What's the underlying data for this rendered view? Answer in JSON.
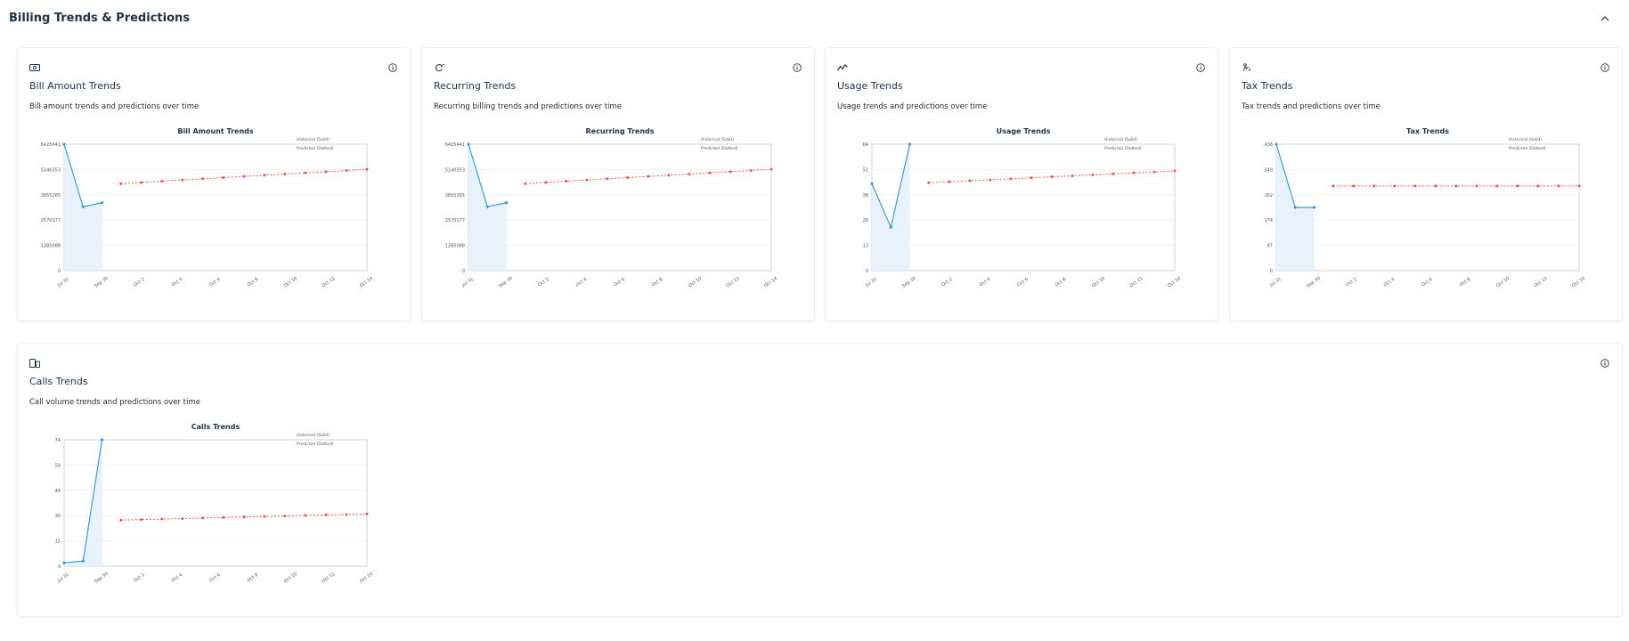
{
  "section": {
    "title": "Billing Trends & Predictions",
    "collapse_icon": "chevron-up-icon"
  },
  "cards": [
    {
      "id": "bill-amount",
      "icon": "money-icon",
      "title": "Bill Amount Trends",
      "description": "Bill amount trends and predictions over time",
      "chart_title": "Bill Amount Trends"
    },
    {
      "id": "recurring",
      "icon": "refresh-icon",
      "title": "Recurring Trends",
      "description": "Recurring billing trends and predictions over time",
      "chart_title": "Recurring Trends"
    },
    {
      "id": "usage",
      "icon": "trend-line-icon",
      "title": "Usage Trends",
      "description": "Usage trends and predictions over time",
      "chart_title": "Usage Trends"
    },
    {
      "id": "tax",
      "icon": "tax-icon",
      "title": "Tax Trends",
      "description": "Tax trends and predictions over time",
      "chart_title": "Tax Trends"
    },
    {
      "id": "calls",
      "icon": "phone-icon",
      "title": "Calls Trends",
      "description": "Call volume trends and predictions over time",
      "chart_title": "Calls Trends"
    }
  ],
  "legend": {
    "historical": "Historical (Solid)",
    "predicted": "Predicted (Dotted)"
  },
  "colors": {
    "historical": "#3a9ad9",
    "historical_fill": "#e3f0fb",
    "predicted": "#e8574f",
    "grid": "#e6e9ee",
    "axis": "#cfd4da",
    "text": "#1f3147"
  },
  "chart_data": [
    {
      "type": "line",
      "title": "Bill Amount Trends",
      "x_ticks": [
        "Jul 31",
        "Sep 30",
        "Oct 2",
        "Oct 4",
        "Oct 6",
        "Oct 8",
        "Oct 10",
        "Oct 12",
        "Oct 14"
      ],
      "y_ticks": [
        "0",
        "1285088",
        "2570177",
        "3855265",
        "5140353",
        "6425441"
      ],
      "ylim": [
        0,
        6425441
      ],
      "historical": [
        6425441,
        3250000,
        3450000
      ],
      "predicted": [
        4420000,
        4480000,
        4550000,
        4610000,
        4670000,
        4730000,
        4790000,
        4850000,
        4910000,
        4970000,
        5030000,
        5090000,
        5150000
      ]
    },
    {
      "type": "line",
      "title": "Recurring Trends",
      "x_ticks": [
        "Jul 31",
        "Sep 30",
        "Oct 2",
        "Oct 4",
        "Oct 6",
        "Oct 8",
        "Oct 10",
        "Oct 12",
        "Oct 14"
      ],
      "y_ticks": [
        "0",
        "1285088",
        "2570177",
        "3855265",
        "5140353",
        "6425441"
      ],
      "ylim": [
        0,
        6425441
      ],
      "historical": [
        6425441,
        3250000,
        3450000
      ],
      "predicted": [
        4420000,
        4480000,
        4550000,
        4610000,
        4670000,
        4730000,
        4790000,
        4850000,
        4910000,
        4970000,
        5030000,
        5090000,
        5150000
      ]
    },
    {
      "type": "line",
      "title": "Usage Trends",
      "x_ticks": [
        "Jul 31",
        "Sep 30",
        "Oct 2",
        "Oct 4",
        "Oct 6",
        "Oct 8",
        "Oct 10",
        "Oct 12",
        "Oct 14"
      ],
      "y_ticks": [
        "0",
        "13",
        "26",
        "38",
        "51",
        "64"
      ],
      "ylim": [
        0,
        64
      ],
      "historical": [
        44,
        22,
        64
      ],
      "predicted": [
        44.5,
        45.0,
        45.5,
        46.0,
        46.5,
        47.0,
        47.5,
        48.0,
        48.5,
        49.0,
        49.5,
        50.0,
        50.5
      ]
    },
    {
      "type": "line",
      "title": "Tax Trends",
      "x_ticks": [
        "Jul 31",
        "Sep 30",
        "Oct 2",
        "Oct 4",
        "Oct 6",
        "Oct 8",
        "Oct 10",
        "Oct 12",
        "Oct 14"
      ],
      "y_ticks": [
        "0",
        "87",
        "174",
        "262",
        "349",
        "436"
      ],
      "ylim": [
        0,
        436
      ],
      "historical": [
        436,
        218,
        218
      ],
      "predicted": [
        292,
        292,
        292,
        292,
        292,
        292,
        292,
        292,
        292,
        292,
        292,
        292,
        292
      ]
    },
    {
      "type": "line",
      "title": "Calls Trends",
      "x_ticks": [
        "Jul 31",
        "Sep 30",
        "Oct 2",
        "Oct 4",
        "Oct 6",
        "Oct 8",
        "Oct 10",
        "Oct 12",
        "Oct 14"
      ],
      "y_ticks": [
        "0",
        "15",
        "30",
        "44",
        "59",
        "74"
      ],
      "ylim": [
        0,
        74
      ],
      "historical": [
        2,
        3,
        74
      ],
      "predicted": [
        27,
        27.3,
        27.6,
        27.9,
        28.2,
        28.5,
        28.8,
        29.1,
        29.4,
        29.7,
        30.0,
        30.3,
        30.6
      ]
    }
  ]
}
